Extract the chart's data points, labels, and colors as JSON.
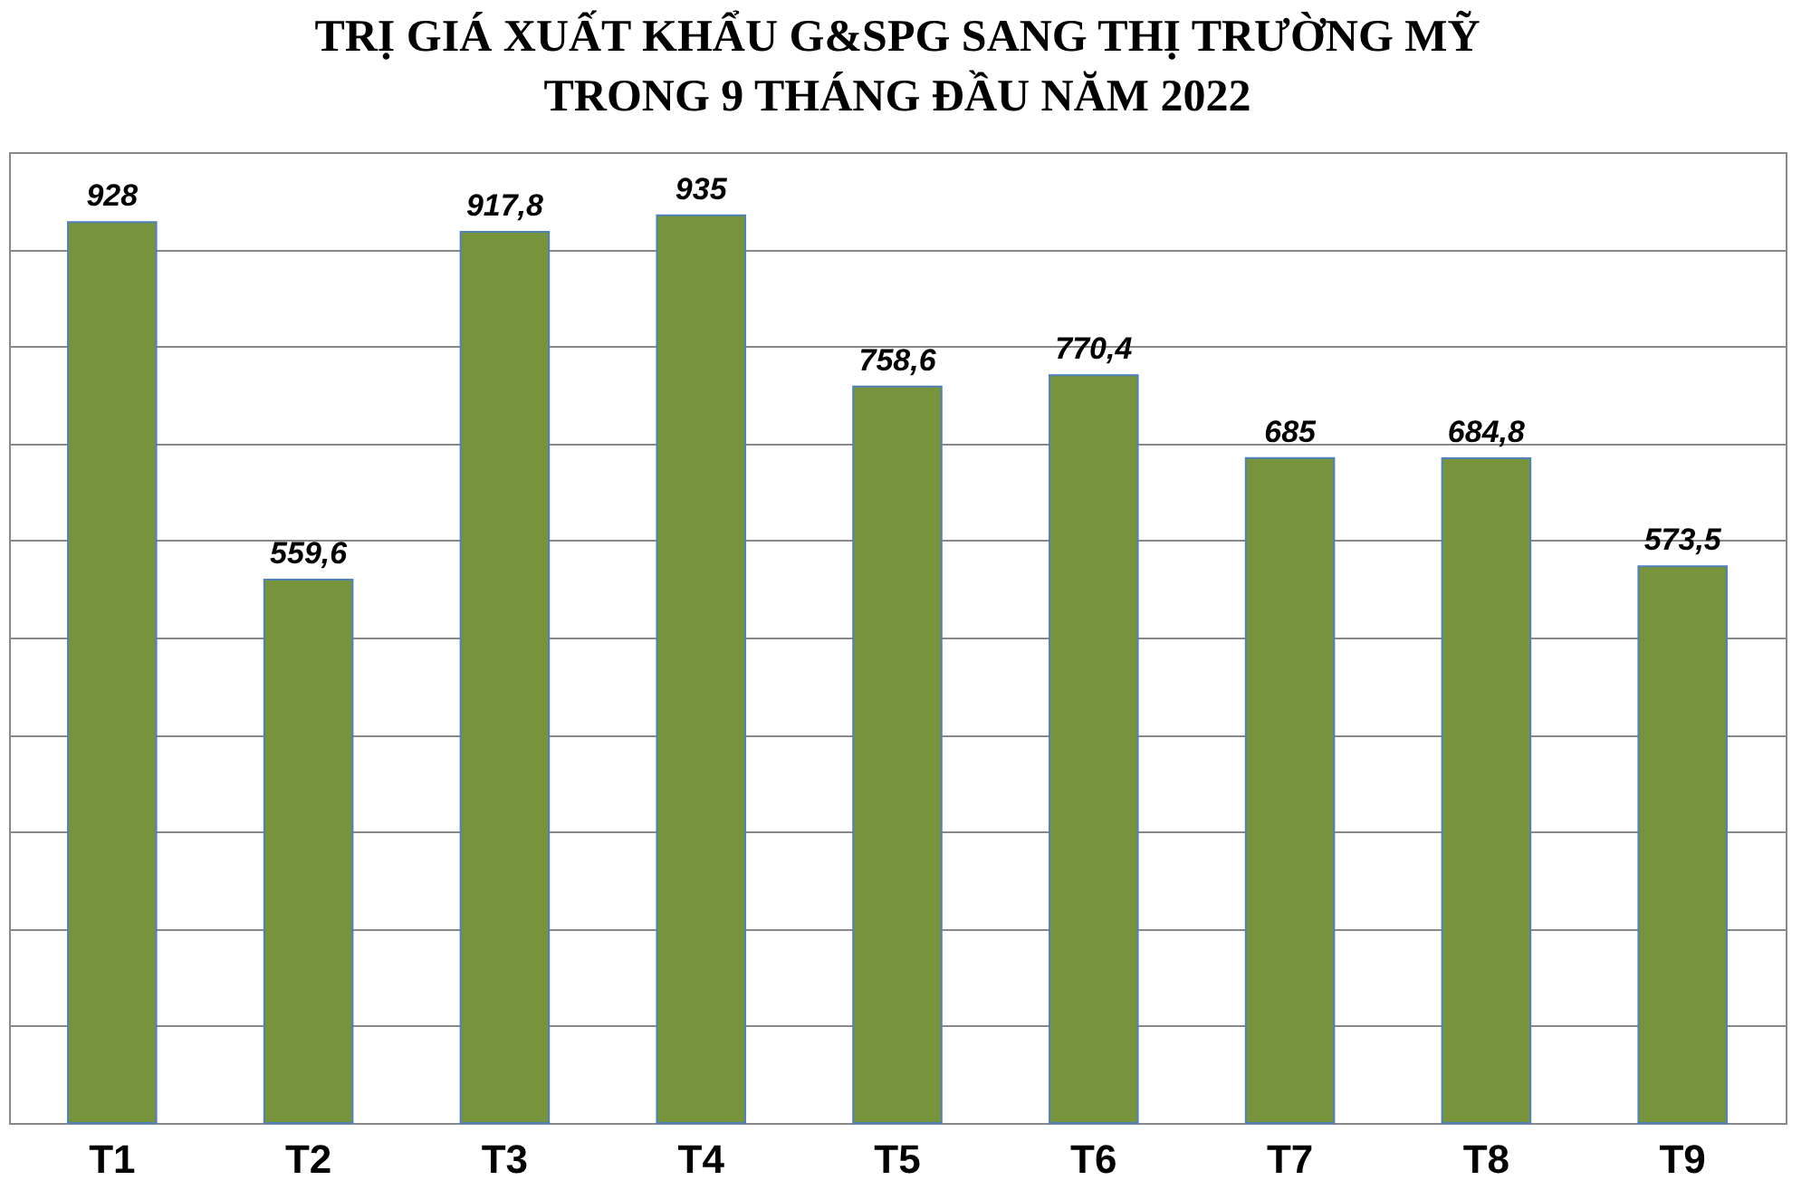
{
  "chart_data": {
    "type": "bar",
    "title": "TRỊ GIÁ XUẤT KHẨU G&SPG SANG THỊ TRƯỜNG MỸ\nTRONG 9 THÁNG ĐẦU NĂM 2022",
    "categories": [
      "T1",
      "T2",
      "T3",
      "T4",
      "T5",
      "T6",
      "T7",
      "T8",
      "T9"
    ],
    "values": [
      928,
      559.6,
      917.8,
      935,
      758.6,
      770.4,
      685,
      684.8,
      573.5
    ],
    "value_labels": [
      "928",
      "559,6",
      "917,8",
      "935",
      "758,6",
      "770,4",
      "685",
      "684,8",
      "573,5"
    ],
    "color": "#77933c",
    "ylim": [
      0,
      1000
    ],
    "yticks": [
      {
        "value": 0,
        "label": null
      },
      {
        "value": 100,
        "label": null
      },
      {
        "value": 200,
        "label": null
      },
      {
        "value": 300,
        "label": null
      },
      {
        "value": 400,
        "label": null
      },
      {
        "value": 500,
        "label": null
      },
      {
        "value": 600,
        "label": null
      },
      {
        "value": 700,
        "label": null
      },
      {
        "value": 800,
        "label": null
      },
      {
        "value": 900,
        "label": null
      },
      {
        "value": 1000,
        "label": null
      }
    ],
    "grid": "y",
    "tick_labels": "x"
  }
}
